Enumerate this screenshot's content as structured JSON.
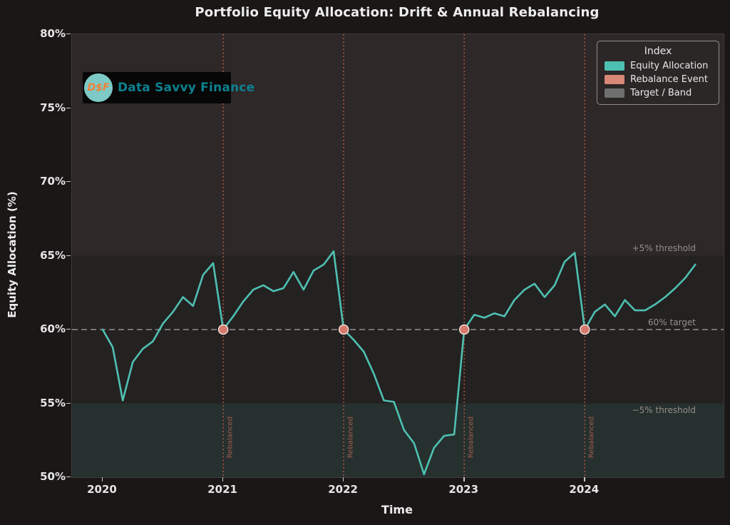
{
  "title": "Portfolio Equity Allocation: Drift & Annual Rebalancing",
  "logo": {
    "badge_text": "D$F",
    "brand_text": "Data Savvy Finance"
  },
  "legend": {
    "title": "Index",
    "items": [
      {
        "label": "Equity Allocation",
        "color": "#4ec0b2"
      },
      {
        "label": "Rebalance Event",
        "color": "#d98777"
      },
      {
        "label": "Target / Band",
        "color": "#6f6f6f"
      }
    ]
  },
  "axes": {
    "x_label": "Time",
    "y_label": "Equity Allocation (%)"
  },
  "annotations": {
    "upper_threshold": "+5% threshold",
    "target": "60% target",
    "lower_threshold": "−5% threshold",
    "rebalance_label": "Rebalanced"
  },
  "chart_data": {
    "type": "line",
    "title": "Portfolio Equity Allocation: Drift & Annual Rebalancing",
    "xlabel": "Time",
    "ylabel": "Equity Allocation (%)",
    "ylim": [
      50,
      80
    ],
    "grid": false,
    "legend_position": "upper right",
    "x_unit": "month",
    "x_start": "2020-01",
    "x_ticks": [
      {
        "month": 0,
        "label": "2020"
      },
      {
        "month": 12,
        "label": "2021"
      },
      {
        "month": 24,
        "label": "2022"
      },
      {
        "month": 36,
        "label": "2023"
      },
      {
        "month": 48,
        "label": "2024"
      }
    ],
    "y_ticks": [
      {
        "value": 80,
        "label": "80%"
      },
      {
        "value": 75,
        "label": "75%"
      },
      {
        "value": 70,
        "label": "70%"
      },
      {
        "value": 65,
        "label": "65%"
      },
      {
        "value": 60,
        "label": "60%"
      },
      {
        "value": 55,
        "label": "55%"
      },
      {
        "value": 50,
        "label": "50%"
      }
    ],
    "target_value": 60,
    "band": {
      "upper": 65,
      "lower": 55
    },
    "series": [
      {
        "name": "Equity Allocation",
        "color": "#4ec0b2",
        "values": [
          60.0,
          58.8,
          55.2,
          57.8,
          58.7,
          59.2,
          60.4,
          61.2,
          62.2,
          61.6,
          63.7,
          64.5,
          60.0,
          60.9,
          61.9,
          62.7,
          63.0,
          62.6,
          62.8,
          63.9,
          62.7,
          64.0,
          64.4,
          65.3,
          60.0,
          59.3,
          58.5,
          57.0,
          55.2,
          55.1,
          53.2,
          52.3,
          50.2,
          52.0,
          52.8,
          52.9,
          60.0,
          61.0,
          60.8,
          61.1,
          60.9,
          62.0,
          62.7,
          63.1,
          62.2,
          63.0,
          64.6,
          65.2,
          60.0,
          61.2,
          61.7,
          60.9,
          62.0,
          61.3,
          61.3,
          61.7,
          62.2,
          62.8,
          63.5,
          64.4
        ]
      }
    ],
    "rebalance_events": [
      {
        "month": 12,
        "value": 60,
        "date": "2021-01"
      },
      {
        "month": 24,
        "value": 60,
        "date": "2022-01"
      },
      {
        "month": 36,
        "value": 60,
        "date": "2023-01"
      },
      {
        "month": 48,
        "value": 60,
        "date": "2024-01"
      }
    ]
  },
  "colors": {
    "figure_bg": "#1b1717",
    "plot_bg": "#242121",
    "band_upper": "#2e2828",
    "band_lower": "#26302e",
    "line": "#4ec0b2",
    "dot_fill": "#d4796b",
    "dot_edge": "#eedbd4",
    "vline": "#b25844",
    "target_line": "#909090",
    "tick": "#c8c8c8"
  }
}
